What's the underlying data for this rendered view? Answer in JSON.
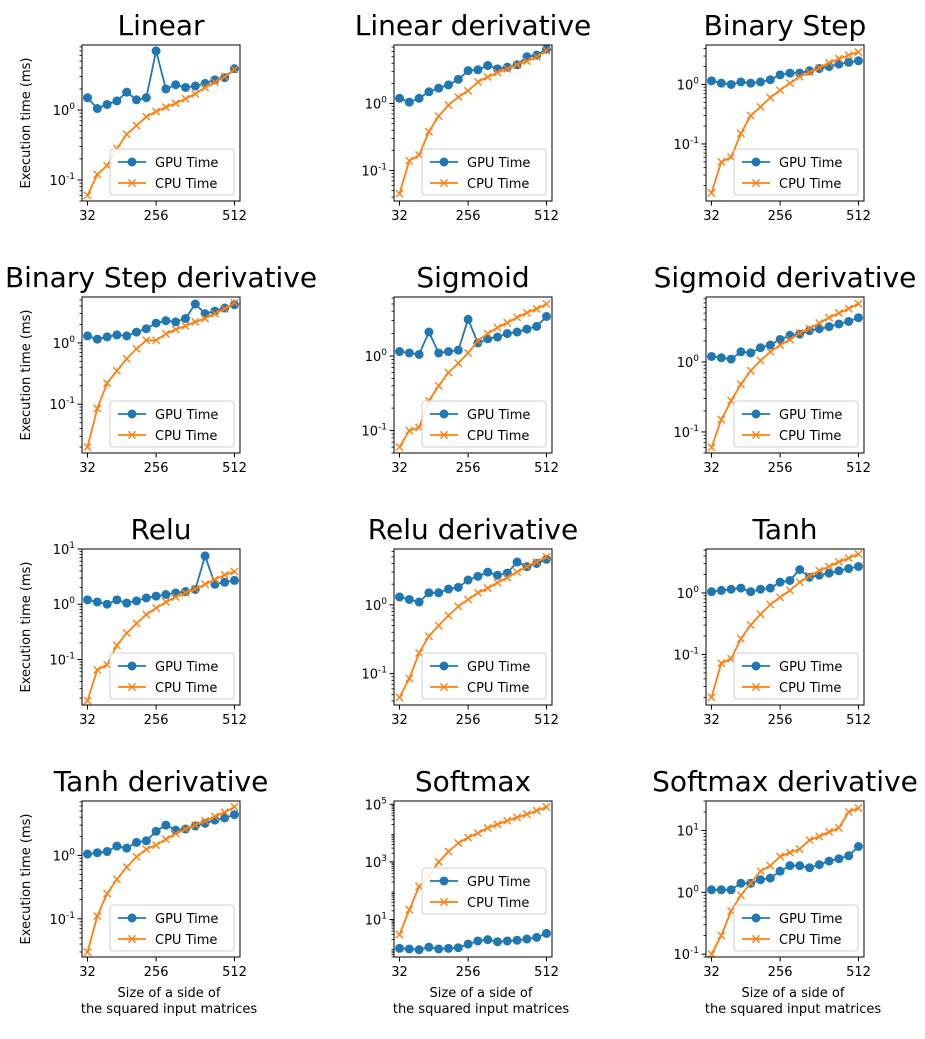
{
  "colors": {
    "gpu": "#1f77b4",
    "cpu": "#ff7f0e"
  },
  "chart_data": [
    {
      "type": "line",
      "title": "Linear",
      "xlabel": "",
      "ylabel": "Execution time (ms)",
      "x": [
        32,
        64,
        96,
        128,
        160,
        192,
        224,
        256,
        288,
        320,
        352,
        384,
        416,
        448,
        480,
        512
      ],
      "xticks": [
        32,
        256,
        512
      ],
      "ylim": [
        0.05,
        8.5
      ],
      "yscale": "log",
      "yticks": [
        {
          "v": 0.1,
          "exp": "-1"
        },
        {
          "v": 1,
          "exp": "0"
        }
      ],
      "legend": "lower right",
      "series": [
        {
          "name": "GPU Time",
          "marker": "circle",
          "values": [
            1.5,
            1.05,
            1.2,
            1.35,
            1.8,
            1.4,
            1.5,
            7.0,
            2.0,
            2.3,
            2.1,
            2.2,
            2.4,
            2.7,
            2.9,
            3.9
          ]
        },
        {
          "name": "CPU Time",
          "marker": "x",
          "values": [
            0.06,
            0.12,
            0.16,
            0.28,
            0.45,
            0.6,
            0.8,
            0.95,
            1.1,
            1.25,
            1.45,
            1.7,
            2.1,
            2.5,
            3.0,
            3.8
          ]
        }
      ]
    },
    {
      "type": "line",
      "title": "Linear derivative",
      "xlabel": "",
      "ylabel": "",
      "x": [
        32,
        64,
        96,
        128,
        160,
        192,
        224,
        256,
        288,
        320,
        352,
        384,
        416,
        448,
        480,
        512
      ],
      "xticks": [
        32,
        256,
        512
      ],
      "ylim": [
        0.035,
        7.5
      ],
      "yscale": "log",
      "yticks": [
        {
          "v": 0.1,
          "exp": "-1"
        },
        {
          "v": 1,
          "exp": "0"
        }
      ],
      "legend": "lower right",
      "series": [
        {
          "name": "GPU Time",
          "marker": "circle",
          "values": [
            1.2,
            1.05,
            1.2,
            1.5,
            1.7,
            1.9,
            2.3,
            3.1,
            3.2,
            3.7,
            3.3,
            3.5,
            3.8,
            5.0,
            5.3,
            6.5
          ]
        },
        {
          "name": "CPU Time",
          "marker": "x",
          "values": [
            0.045,
            0.14,
            0.17,
            0.38,
            0.65,
            0.95,
            1.25,
            1.55,
            2.1,
            2.5,
            2.9,
            3.3,
            3.8,
            4.3,
            5.0,
            6.2
          ]
        }
      ]
    },
    {
      "type": "line",
      "title": "Binary Step",
      "xlabel": "",
      "ylabel": "",
      "x": [
        32,
        64,
        96,
        128,
        160,
        192,
        224,
        256,
        288,
        320,
        352,
        384,
        416,
        448,
        480,
        512
      ],
      "xticks": [
        32,
        256,
        512
      ],
      "ylim": [
        0.011,
        4.6
      ],
      "yscale": "log",
      "yticks": [
        {
          "v": 0.1,
          "exp": "-1"
        },
        {
          "v": 1,
          "exp": "0"
        }
      ],
      "legend": "lower right",
      "series": [
        {
          "name": "GPU Time",
          "marker": "circle",
          "values": [
            1.15,
            1.05,
            1.0,
            1.1,
            1.05,
            1.1,
            1.2,
            1.45,
            1.55,
            1.55,
            1.7,
            1.85,
            2.0,
            2.2,
            2.35,
            2.5
          ]
        },
        {
          "name": "CPU Time",
          "marker": "x",
          "values": [
            0.015,
            0.05,
            0.06,
            0.15,
            0.3,
            0.42,
            0.6,
            0.8,
            1.05,
            1.35,
            1.6,
            1.9,
            2.3,
            2.7,
            3.1,
            3.5
          ]
        }
      ]
    },
    {
      "type": "line",
      "title": "Binary Step derivative",
      "xlabel": "",
      "ylabel": "Execution time (ms)",
      "x": [
        32,
        64,
        96,
        128,
        160,
        192,
        224,
        256,
        288,
        320,
        352,
        384,
        416,
        448,
        480,
        512
      ],
      "xticks": [
        32,
        256,
        512
      ],
      "ylim": [
        0.016,
        5.6
      ],
      "yscale": "log",
      "yticks": [
        {
          "v": 0.1,
          "exp": "-1"
        },
        {
          "v": 1,
          "exp": "0"
        }
      ],
      "legend": "lower right",
      "series": [
        {
          "name": "GPU Time",
          "marker": "circle",
          "values": [
            1.3,
            1.15,
            1.25,
            1.35,
            1.3,
            1.5,
            1.7,
            2.1,
            2.3,
            2.2,
            2.5,
            4.3,
            3.0,
            3.3,
            3.7,
            4.2
          ]
        },
        {
          "name": "CPU Time",
          "marker": "x",
          "values": [
            0.02,
            0.085,
            0.22,
            0.35,
            0.55,
            0.8,
            1.1,
            1.1,
            1.4,
            1.65,
            1.9,
            2.2,
            2.5,
            3.0,
            3.6,
            4.5
          ]
        }
      ]
    },
    {
      "type": "line",
      "title": "Sigmoid",
      "xlabel": "",
      "ylabel": "",
      "x": [
        32,
        64,
        96,
        128,
        160,
        192,
        224,
        256,
        288,
        320,
        352,
        384,
        416,
        448,
        480,
        512
      ],
      "xticks": [
        32,
        256,
        512
      ],
      "ylim": [
        0.05,
        6.2
      ],
      "yscale": "log",
      "yticks": [
        {
          "v": 0.1,
          "exp": "-1"
        },
        {
          "v": 1,
          "exp": "0"
        }
      ],
      "legend": "lower right",
      "series": [
        {
          "name": "GPU Time",
          "marker": "circle",
          "values": [
            1.15,
            1.1,
            1.05,
            2.1,
            1.1,
            1.15,
            1.2,
            3.1,
            1.5,
            1.7,
            1.8,
            2.0,
            2.1,
            2.3,
            2.5,
            3.4
          ]
        },
        {
          "name": "CPU Time",
          "marker": "x",
          "values": [
            0.06,
            0.1,
            0.11,
            0.25,
            0.4,
            0.6,
            0.8,
            1.1,
            1.6,
            2.0,
            2.4,
            2.8,
            3.3,
            3.8,
            4.3,
            5.0
          ]
        }
      ]
    },
    {
      "type": "line",
      "title": "Sigmoid derivative",
      "xlabel": "",
      "ylabel": "",
      "x": [
        32,
        64,
        96,
        128,
        160,
        192,
        224,
        256,
        288,
        320,
        352,
        384,
        416,
        448,
        480,
        512
      ],
      "xticks": [
        32,
        256,
        512
      ],
      "ylim": [
        0.05,
        8.5
      ],
      "yscale": "log",
      "yticks": [
        {
          "v": 0.1,
          "exp": "-1"
        },
        {
          "v": 1,
          "exp": "0"
        }
      ],
      "legend": "lower right",
      "series": [
        {
          "name": "GPU Time",
          "marker": "circle",
          "values": [
            1.2,
            1.15,
            1.1,
            1.4,
            1.35,
            1.6,
            1.75,
            2.1,
            2.4,
            2.5,
            2.8,
            3.0,
            3.2,
            3.5,
            3.8,
            4.3
          ]
        },
        {
          "name": "CPU Time",
          "marker": "x",
          "values": [
            0.06,
            0.15,
            0.28,
            0.48,
            0.75,
            1.05,
            1.4,
            1.75,
            2.1,
            2.6,
            3.0,
            3.6,
            4.3,
            5.0,
            5.8,
            6.8
          ]
        }
      ]
    },
    {
      "type": "line",
      "title": "Relu",
      "xlabel": "",
      "ylabel": "Execution time (ms)",
      "x": [
        32,
        64,
        96,
        128,
        160,
        192,
        224,
        256,
        288,
        320,
        352,
        384,
        416,
        448,
        480,
        512
      ],
      "xticks": [
        32,
        256,
        512
      ],
      "ylim": [
        0.015,
        10.0
      ],
      "yscale": "log",
      "yticks": [
        {
          "v": 0.1,
          "exp": "-1"
        },
        {
          "v": 1,
          "exp": "0"
        },
        {
          "v": 10,
          "exp": "1"
        }
      ],
      "legend": "lower right",
      "series": [
        {
          "name": "GPU Time",
          "marker": "circle",
          "values": [
            1.2,
            1.1,
            1.0,
            1.2,
            1.05,
            1.15,
            1.3,
            1.4,
            1.5,
            1.6,
            1.7,
            1.85,
            7.5,
            2.3,
            2.5,
            2.7
          ]
        },
        {
          "name": "CPU Time",
          "marker": "x",
          "values": [
            0.018,
            0.065,
            0.08,
            0.18,
            0.3,
            0.45,
            0.65,
            0.85,
            1.1,
            1.35,
            1.6,
            1.9,
            2.3,
            2.8,
            3.4,
            3.9
          ]
        }
      ]
    },
    {
      "type": "line",
      "title": "Relu derivative",
      "xlabel": "",
      "ylabel": "",
      "x": [
        32,
        64,
        96,
        128,
        160,
        192,
        224,
        256,
        288,
        320,
        352,
        384,
        416,
        448,
        480,
        512
      ],
      "xticks": [
        32,
        256,
        512
      ],
      "ylim": [
        0.035,
        6.5
      ],
      "yscale": "log",
      "yticks": [
        {
          "v": 0.1,
          "exp": "-1"
        },
        {
          "v": 1,
          "exp": "0"
        }
      ],
      "legend": "lower right",
      "series": [
        {
          "name": "GPU Time",
          "marker": "circle",
          "values": [
            1.3,
            1.2,
            1.1,
            1.5,
            1.5,
            1.7,
            1.8,
            2.3,
            2.6,
            3.0,
            2.7,
            2.9,
            4.2,
            3.6,
            4.0,
            4.6
          ]
        },
        {
          "name": "CPU Time",
          "marker": "x",
          "values": [
            0.045,
            0.085,
            0.2,
            0.35,
            0.5,
            0.7,
            0.95,
            1.2,
            1.5,
            1.75,
            2.1,
            2.5,
            3.0,
            3.6,
            4.2,
            5.0
          ]
        }
      ]
    },
    {
      "type": "line",
      "title": "Tanh",
      "xlabel": "",
      "ylabel": "",
      "x": [
        32,
        64,
        96,
        128,
        160,
        192,
        224,
        256,
        288,
        320,
        352,
        384,
        416,
        448,
        480,
        512
      ],
      "xticks": [
        32,
        256,
        512
      ],
      "ylim": [
        0.015,
        5.2
      ],
      "yscale": "log",
      "yticks": [
        {
          "v": 0.1,
          "exp": "-1"
        },
        {
          "v": 1,
          "exp": "0"
        }
      ],
      "legend": "lower right",
      "series": [
        {
          "name": "GPU Time",
          "marker": "circle",
          "values": [
            1.05,
            1.1,
            1.15,
            1.2,
            1.05,
            1.15,
            1.2,
            1.5,
            1.6,
            2.4,
            1.8,
            1.95,
            2.1,
            2.3,
            2.5,
            2.7
          ]
        },
        {
          "name": "CPU Time",
          "marker": "x",
          "values": [
            0.02,
            0.072,
            0.085,
            0.18,
            0.3,
            0.45,
            0.65,
            0.85,
            1.1,
            1.5,
            1.9,
            2.3,
            2.7,
            3.2,
            3.7,
            4.3
          ]
        }
      ]
    },
    {
      "type": "line",
      "title": "Tanh derivative",
      "xlabel": "Size of a side of\nthe squared input matrices",
      "ylabel": "Execution time (ms)",
      "x": [
        32,
        64,
        96,
        128,
        160,
        192,
        224,
        256,
        288,
        320,
        352,
        384,
        416,
        448,
        480,
        512
      ],
      "xticks": [
        32,
        256,
        512
      ],
      "ylim": [
        0.025,
        7.2
      ],
      "yscale": "log",
      "yticks": [
        {
          "v": 0.1,
          "exp": "-1"
        },
        {
          "v": 1,
          "exp": "0"
        }
      ],
      "legend": "lower right",
      "series": [
        {
          "name": "GPU Time",
          "marker": "circle",
          "values": [
            1.05,
            1.1,
            1.15,
            1.4,
            1.3,
            1.6,
            1.7,
            2.4,
            3.0,
            2.5,
            2.6,
            2.9,
            3.2,
            3.6,
            3.9,
            4.4
          ]
        },
        {
          "name": "CPU Time",
          "marker": "x",
          "values": [
            0.03,
            0.11,
            0.25,
            0.42,
            0.65,
            0.95,
            1.25,
            1.45,
            1.8,
            2.2,
            2.6,
            3.0,
            3.5,
            4.1,
            4.8,
            5.8
          ]
        }
      ]
    },
    {
      "type": "line",
      "title": "Softmax",
      "xlabel": "Size of a side of\nthe squared input matrices",
      "ylabel": "",
      "x": [
        32,
        64,
        96,
        128,
        160,
        192,
        224,
        256,
        288,
        320,
        352,
        384,
        416,
        448,
        480,
        512
      ],
      "xticks": [
        32,
        256,
        512
      ],
      "ylim": [
        0.5,
        130000
      ],
      "yscale": "log",
      "yticks": [
        {
          "v": 10,
          "exp": "1"
        },
        {
          "v": 1000,
          "exp": "3"
        },
        {
          "v": 100000,
          "exp": "5"
        }
      ],
      "legend": "center right",
      "series": [
        {
          "name": "GPU Time",
          "marker": "circle",
          "values": [
            1.0,
            0.95,
            0.9,
            1.1,
            0.95,
            1.0,
            1.05,
            1.4,
            1.8,
            2.0,
            1.7,
            1.8,
            1.9,
            2.1,
            2.4,
            3.3
          ]
        },
        {
          "name": "CPU Time",
          "marker": "x",
          "values": [
            3,
            22,
            140,
            320,
            1000,
            2300,
            4500,
            7000,
            10000,
            15000,
            20000,
            27000,
            35000,
            45000,
            60000,
            80000
          ]
        }
      ]
    },
    {
      "type": "line",
      "title": "Softmax derivative",
      "xlabel": "Size of a side of\nthe squared input matrices",
      "ylabel": "",
      "x": [
        32,
        64,
        96,
        128,
        160,
        192,
        224,
        256,
        288,
        320,
        352,
        384,
        416,
        448,
        480,
        512
      ],
      "xticks": [
        32,
        256,
        512
      ],
      "ylim": [
        0.09,
        30
      ],
      "yscale": "log",
      "yticks": [
        {
          "v": 0.1,
          "exp": "-1"
        },
        {
          "v": 1,
          "exp": "0"
        },
        {
          "v": 10,
          "exp": "1"
        }
      ],
      "legend": "lower right",
      "series": [
        {
          "name": "GPU Time",
          "marker": "circle",
          "values": [
            1.1,
            1.1,
            1.1,
            1.4,
            1.4,
            1.6,
            1.7,
            2.2,
            2.7,
            2.7,
            2.5,
            2.8,
            3.2,
            3.5,
            3.9,
            5.5
          ]
        },
        {
          "name": "CPU Time",
          "marker": "x",
          "values": [
            0.1,
            0.2,
            0.5,
            0.9,
            1.4,
            2.2,
            2.7,
            3.8,
            4.4,
            5.0,
            7.0,
            8.0,
            9.5,
            11,
            20,
            23
          ]
        }
      ]
    }
  ]
}
